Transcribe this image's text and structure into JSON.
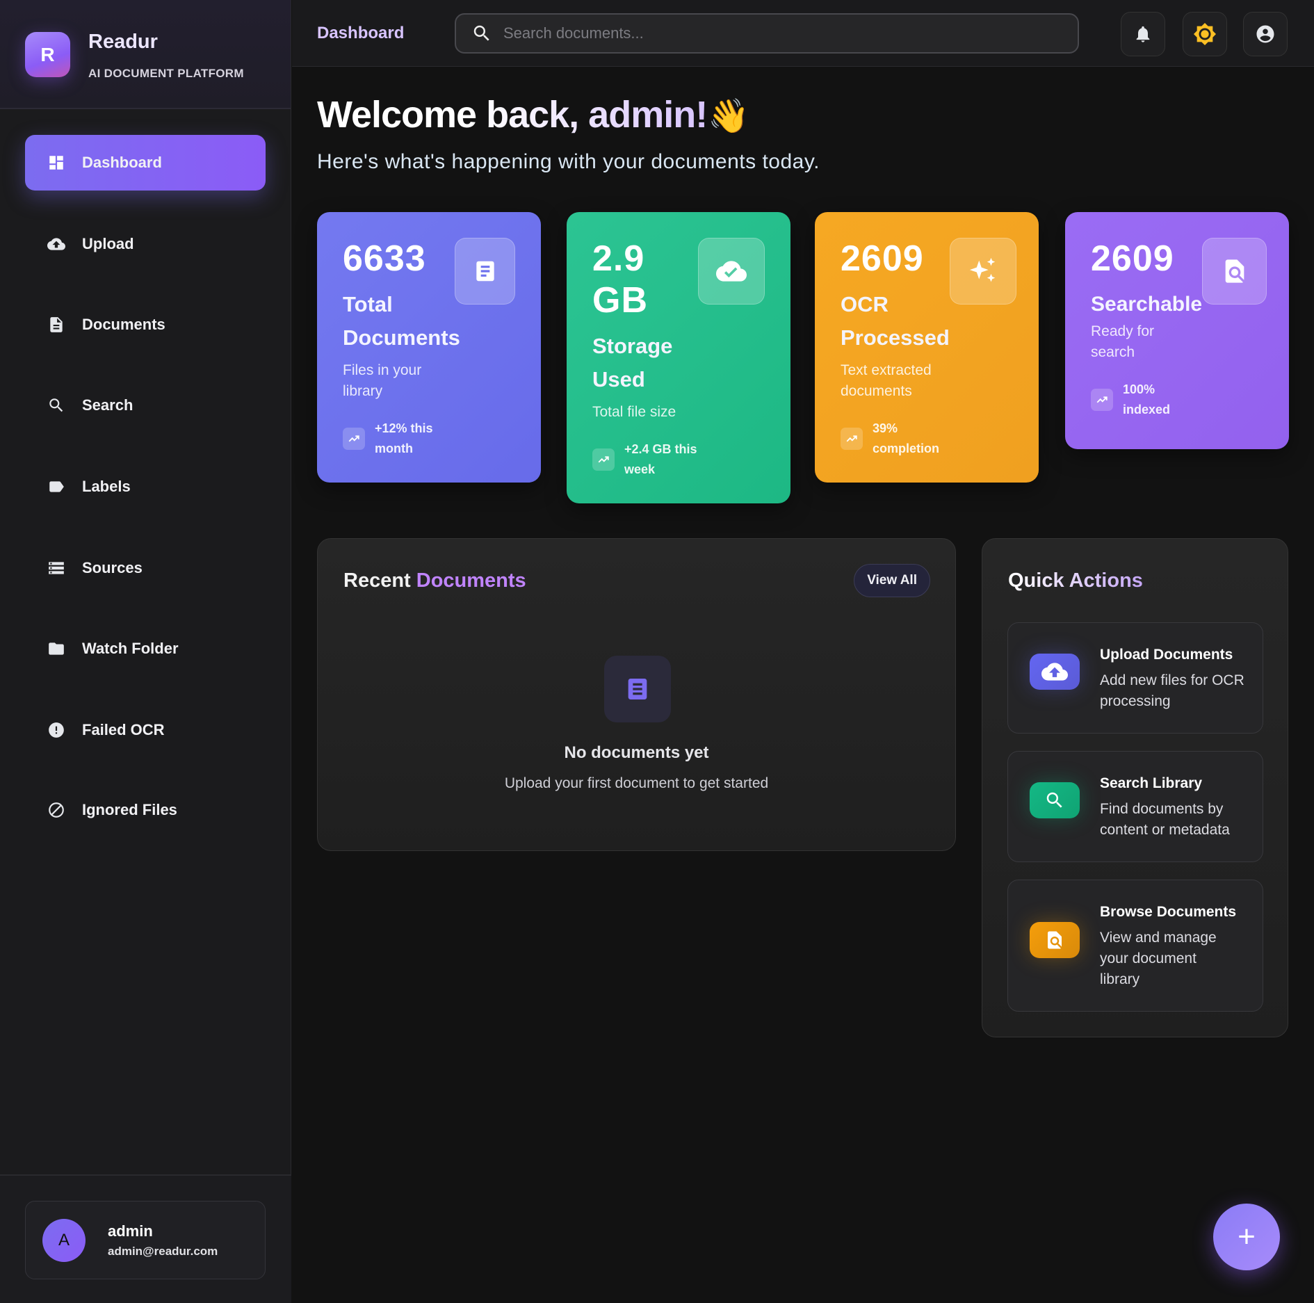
{
  "sidebar": {
    "brand": {
      "logo_letter": "R",
      "name": "Readur",
      "subtitle": "AI DOCUMENT PLATFORM"
    },
    "items": [
      {
        "label": "Dashboard",
        "icon": "dashboard-icon",
        "active": true
      },
      {
        "label": "Upload",
        "icon": "cloud-upload-icon"
      },
      {
        "label": "Documents",
        "icon": "document-icon"
      },
      {
        "label": "Search",
        "icon": "search-icon"
      },
      {
        "label": "Labels",
        "icon": "label-icon"
      },
      {
        "label": "Sources",
        "icon": "storage-icon"
      },
      {
        "label": "Watch Folder",
        "icon": "folder-icon"
      },
      {
        "label": "Failed OCR",
        "icon": "error-icon"
      },
      {
        "label": "Ignored Files",
        "icon": "block-icon"
      }
    ],
    "user": {
      "avatar_letter": "A",
      "name": "admin",
      "email": "admin@readur.com"
    }
  },
  "header": {
    "title": "Dashboard",
    "search_placeholder": "Search documents...",
    "buttons": [
      "bell-icon",
      "sun-icon",
      "account-icon"
    ]
  },
  "welcome": {
    "title": "Welcome back, admin!",
    "emoji": "👋",
    "subtitle": "Here's what's happening with your documents today."
  },
  "stats": [
    {
      "value": "6633",
      "title": "Total Documents",
      "desc": "Files in your library",
      "trend": "+12% this month",
      "icon": "document-icon",
      "color": "#6f73ee"
    },
    {
      "value": "2.9 GB",
      "title": "Storage Used",
      "desc": "Total file size",
      "trend": "+2.4 GB this week",
      "icon": "cloud-check-icon",
      "color": "#22bf8a"
    },
    {
      "value": "2609",
      "title": "OCR Processed",
      "desc": "Text extracted documents",
      "trend": "39% completion",
      "icon": "sparkle-icon",
      "color": "#f4a622"
    },
    {
      "value": "2609",
      "title": "Searchable",
      "desc": "Ready for search",
      "trend": "100% indexed",
      "icon": "find-in-page-icon",
      "color": "#9a6cf2"
    }
  ],
  "recent": {
    "title_a": "Recent",
    "title_b": "Documents",
    "view_all": "View All",
    "empty_title": "No documents yet",
    "empty_subtitle": "Upload your first document to get started"
  },
  "quick_actions": {
    "title": "Quick Actions",
    "items": [
      {
        "title": "Upload Documents",
        "desc": "Add new files for OCR processing",
        "icon": "cloud-upload-icon",
        "color": "#6366f1"
      },
      {
        "title": "Search Library",
        "desc": "Find documents by content or metadata",
        "icon": "search-icon",
        "color": "#10b981"
      },
      {
        "title": "Browse Documents",
        "desc": "View and manage your document library",
        "icon": "find-in-page-icon",
        "color": "#f59e0b"
      }
    ]
  },
  "fab": {
    "label": "+"
  }
}
